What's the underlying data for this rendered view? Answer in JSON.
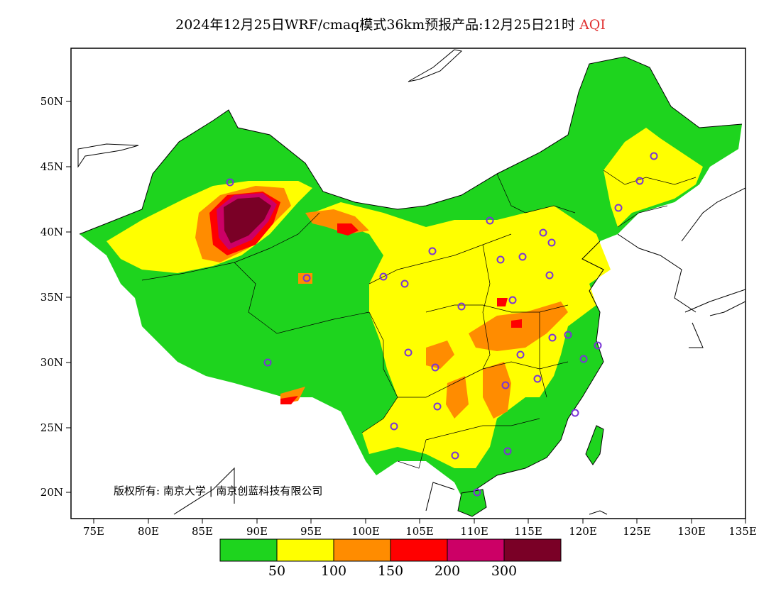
{
  "title": {
    "main": "2024年12月25日WRF/cmaq模式36km预报产品:12月25日21时",
    "variable": "AQI",
    "variable_color": "#e03030"
  },
  "axes": {
    "lat_labels": [
      "50N",
      "45N",
      "40N",
      "35N",
      "30N",
      "25N",
      "20N"
    ],
    "lon_labels": [
      "75E",
      "80E",
      "85E",
      "90E",
      "95E",
      "100E",
      "105E",
      "110E",
      "115E",
      "120E",
      "125E",
      "130E",
      "135E"
    ],
    "lon_range": [
      73,
      135
    ],
    "lat_range": [
      18,
      54
    ]
  },
  "copyright": "版权所有: 南京大学 | 南京创蓝科技有限公司",
  "legend": {
    "colors": [
      "#1ed41e",
      "#ffff00",
      "#ff8c00",
      "#ff0000",
      "#cc0066",
      "#7a0026"
    ],
    "thresholds": [
      "50",
      "100",
      "150",
      "200",
      "300"
    ]
  },
  "stations_count": 32
}
